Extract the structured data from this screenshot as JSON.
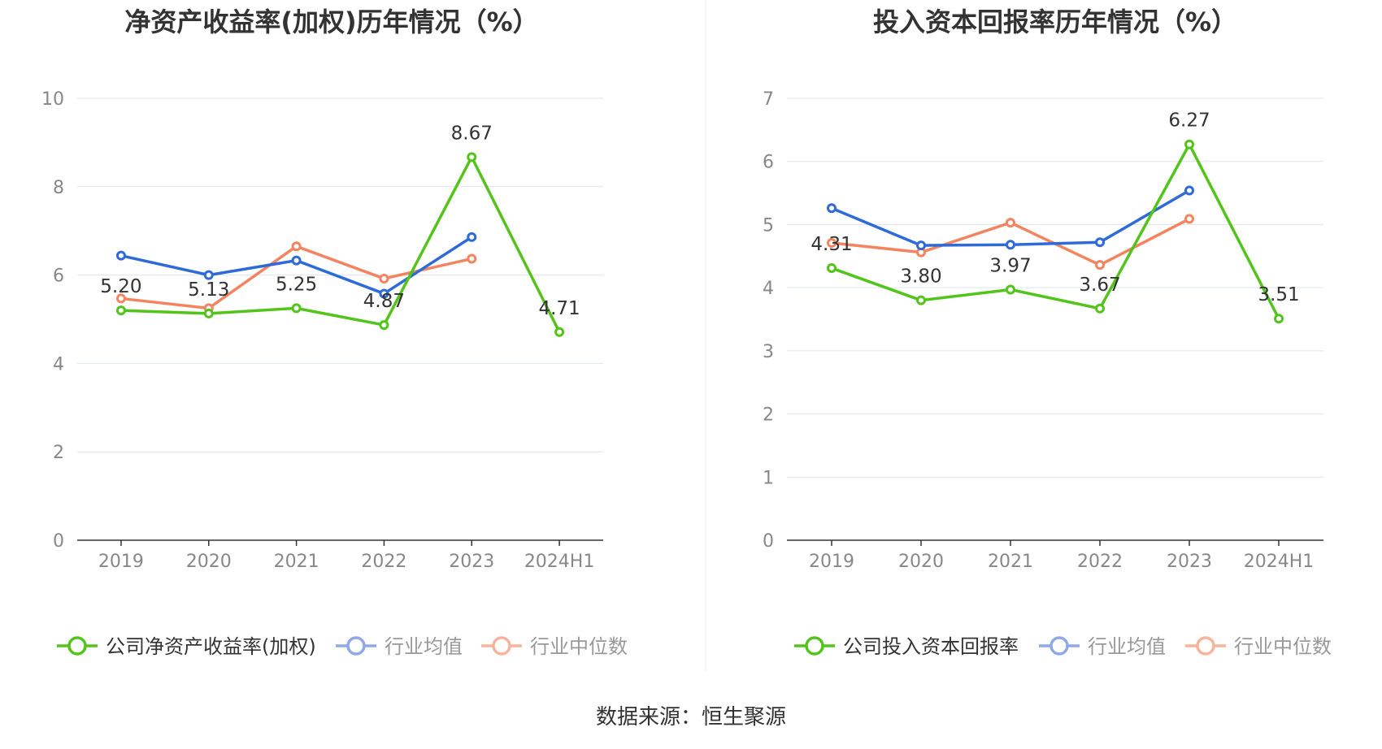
{
  "source": "数据来源：恒生聚源",
  "chart_data": [
    {
      "type": "line",
      "title": "净资产收益率(加权)历年情况（%）",
      "categories": [
        "2019",
        "2020",
        "2021",
        "2022",
        "2023",
        "2024H1"
      ],
      "ylim": [
        0,
        10
      ],
      "yticks": [
        "0",
        "2",
        "4",
        "6",
        "8",
        "10"
      ],
      "grid": true,
      "legend_position": "bottom",
      "series": [
        {
          "name": "公司净资产收益率(加权)",
          "color": "#52c41a",
          "values": [
            5.2,
            5.13,
            5.25,
            4.87,
            8.67,
            4.71
          ],
          "labels": [
            "5.20",
            "5.13",
            "5.25",
            "4.87",
            "8.67",
            "4.71"
          ]
        },
        {
          "name": "行业均值",
          "color": "#2f6ad9",
          "values": [
            6.44,
            6.0,
            6.33,
            5.58,
            6.86,
            null
          ]
        },
        {
          "name": "行业中位数",
          "color": "#f4845f",
          "values": [
            5.47,
            5.25,
            6.65,
            5.92,
            6.37,
            null
          ]
        }
      ]
    },
    {
      "type": "line",
      "title": "投入资本回报率历年情况（%）",
      "categories": [
        "2019",
        "2020",
        "2021",
        "2022",
        "2023",
        "2024H1"
      ],
      "ylim": [
        0,
        7
      ],
      "yticks": [
        "0",
        "1",
        "2",
        "3",
        "4",
        "5",
        "6",
        "7"
      ],
      "grid": true,
      "legend_position": "bottom",
      "series": [
        {
          "name": "公司投入资本回报率",
          "color": "#52c41a",
          "values": [
            4.31,
            3.8,
            3.97,
            3.67,
            6.27,
            3.51
          ],
          "labels": [
            "4.31",
            "3.80",
            "3.97",
            "3.67",
            "6.27",
            "3.51"
          ]
        },
        {
          "name": "行业均值",
          "color": "#2f6ad9",
          "values": [
            5.26,
            4.67,
            4.68,
            4.72,
            5.54,
            null
          ]
        },
        {
          "name": "行业中位数",
          "color": "#f4845f",
          "values": [
            4.71,
            4.56,
            5.03,
            4.36,
            5.09,
            null
          ]
        }
      ]
    }
  ]
}
